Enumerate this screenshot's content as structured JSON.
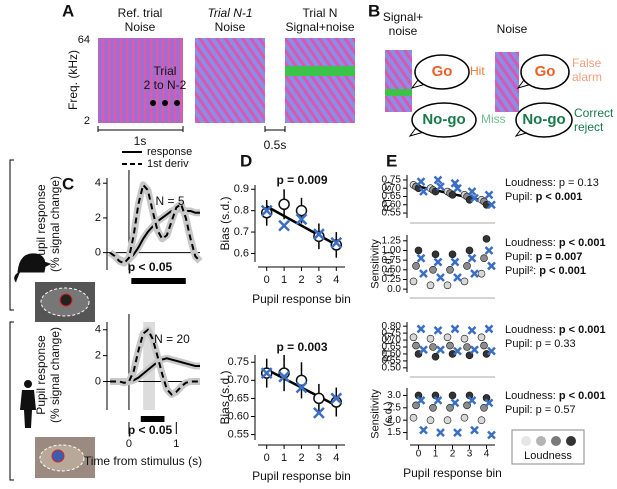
{
  "diagram": {
    "A": {
      "label": "A",
      "ref_title": [
        "Ref. trial",
        "Noise"
      ],
      "freq_label": "Freq. (kHz)",
      "freq_ticks": [
        64,
        2
      ],
      "middle": [
        "Trial",
        "2 to N-2"
      ],
      "prev_title": [
        "Trial N-1",
        "Noise"
      ],
      "current_title": [
        "Trial N",
        "Signal+noise"
      ],
      "scale_ref": "1s",
      "scale_gap": "0.5s"
    },
    "B": {
      "label": "B",
      "signal": {
        "title": [
          "Signal+",
          "noise"
        ],
        "go": "Go",
        "nogo": "No-go",
        "go_outcome": "Hit",
        "nogo_outcome": "Miss"
      },
      "noise": {
        "title": "Noise",
        "go": "Go",
        "nogo": "No-go",
        "go_outcome": [
          "False",
          "alarm"
        ],
        "nogo_outcome": [
          "Correct",
          "reject"
        ]
      }
    }
  },
  "chart_data": [
    {
      "type": "line",
      "label": "C",
      "ylabel": "Pupil response (% signal change)",
      "x": [
        -0.4,
        -0.3,
        -0.2,
        -0.1,
        0,
        0.1,
        0.2,
        0.3,
        0.4,
        0.5,
        0.6,
        0.7,
        0.8,
        0.9,
        1.0,
        1.1,
        1.2,
        1.3,
        1.4,
        1.5
      ],
      "xlim": [
        -0.4,
        1.5
      ],
      "ylim": [
        -1,
        4.3
      ],
      "yticks": [
        0,
        2,
        4
      ],
      "series": [
        {
          "name": "response",
          "color": "#000000",
          "style": "solid",
          "values": [
            0,
            -0.2,
            -0.4,
            -0.5,
            -0.4,
            -0.1,
            0.3,
            0.8,
            1.2,
            1.5,
            1.8,
            2.0,
            2.2,
            2.4,
            2.5,
            2.5,
            2.4,
            2.4,
            2.3,
            2.3
          ]
        },
        {
          "name": "1st deriv",
          "color": "#000000",
          "style": "dashed",
          "values": [
            0,
            -0.2,
            -0.5,
            -0.6,
            -0.3,
            1.0,
            2.8,
            3.9,
            3.6,
            2.4,
            1.3,
            0.8,
            1.0,
            1.8,
            2.6,
            2.8,
            2.0,
            0.8,
            -0.2,
            -0.5
          ]
        }
      ],
      "annotations": [
        "N = 5",
        "p < 0.05"
      ],
      "sig_bar": [
        0.05,
        1.2
      ]
    },
    {
      "type": "line",
      "ylabel": "Pupil response (% signal change)",
      "xlabel": "Time from stimulus (s)",
      "x": [
        -0.4,
        -0.3,
        -0.2,
        -0.1,
        0,
        0.1,
        0.2,
        0.3,
        0.4,
        0.5,
        0.6,
        0.7,
        0.8,
        0.9,
        1.0,
        1.1,
        1.2,
        1.3,
        1.4,
        1.5
      ],
      "xlim": [
        -0.4,
        1.5
      ],
      "xticks": [
        0,
        1
      ],
      "ylim": [
        -2.2,
        4.6
      ],
      "yticks": [
        0,
        2,
        4
      ],
      "series": [
        {
          "color": "#000000",
          "style": "solid",
          "values": [
            0,
            0,
            0,
            0,
            0,
            0.1,
            0.3,
            0.6,
            0.9,
            1.2,
            1.5,
            1.7,
            1.8,
            1.7,
            1.6,
            1.5,
            1.4,
            1.3,
            1.2,
            1.2
          ]
        },
        {
          "color": "#000000",
          "style": "dashed",
          "values": [
            0,
            0,
            0,
            -0.1,
            0,
            0.8,
            2.4,
            3.7,
            4.0,
            3.3,
            2.0,
            0.6,
            -0.6,
            -1.0,
            -0.8,
            -0.4,
            -0.1,
            0,
            0,
            0
          ]
        }
      ],
      "annotations": [
        "N = 20",
        "p < 0.05"
      ],
      "sig_bar": [
        0.25,
        0.75
      ],
      "shade": [
        0.3,
        0.55
      ]
    },
    {
      "type": "scatter",
      "label": "D",
      "ylabel": "Bias (s.d.)",
      "xlabel": "Pupil response bin",
      "x": [
        0,
        1,
        2,
        3,
        4
      ],
      "xlim": [
        -0.5,
        4.5
      ],
      "xticks": [
        0,
        1,
        2,
        3,
        4
      ],
      "ylim": [
        0.56,
        0.92
      ],
      "yticks": [
        0.6,
        0.7,
        0.8,
        0.9
      ],
      "series": [
        {
          "color": "#ffffff",
          "marker": "circle",
          "values": [
            0.79,
            0.83,
            0.8,
            0.68,
            0.64
          ],
          "errors": [
            0.06,
            0.07,
            0.06,
            0.06,
            0.06
          ]
        },
        {
          "color": "#3a6fc4",
          "marker": "x",
          "values": [
            0.8,
            0.73,
            0.76,
            0.69,
            0.65
          ]
        }
      ],
      "fit": [
        0.82,
        0.64
      ],
      "annotations": [
        "p = 0.009"
      ]
    },
    {
      "type": "scatter",
      "ylabel": "Bias (s.d.)",
      "xlabel": "Pupil response bin",
      "x": [
        0,
        1,
        2,
        3,
        4
      ],
      "xlim": [
        -0.5,
        4.5
      ],
      "xticks": [
        0,
        1,
        2,
        3,
        4
      ],
      "ylim": [
        0.535,
        0.77
      ],
      "yticks": [
        0.55,
        {
          "value": 0.6,
          "label": "0.60"
        },
        0.65,
        {
          "value": 0.7,
          "label": "0.70"
        },
        0.75
      ],
      "series": [
        {
          "color": "#ffffff",
          "marker": "circle",
          "values": [
            0.72,
            0.72,
            0.7,
            0.65,
            0.64
          ],
          "errors": [
            0.04,
            0.05,
            0.05,
            0.04,
            0.04
          ]
        },
        {
          "color": "#3a6fc4",
          "marker": "x",
          "values": [
            0.72,
            0.71,
            0.68,
            0.61,
            0.65
          ]
        }
      ],
      "fit": [
        0.73,
        0.63
      ],
      "annotations": [
        "p = 0.003"
      ]
    },
    {
      "type": "scatter",
      "label": "E",
      "ylabel": "RT (s)",
      "x": [
        0,
        1,
        2,
        3,
        4
      ],
      "xlim": [
        -0.5,
        4.5
      ],
      "ylim": [
        0.52,
        0.78
      ],
      "yticks": [
        0.55,
        {
          "value": 0.6,
          "label": "0.60"
        },
        0.65,
        {
          "value": 0.7,
          "label": "0.70"
        },
        0.75
      ],
      "series": [
        {
          "color": "#d8d8d8",
          "marker": "circle",
          "values": [
            0.72,
            0.7,
            0.68,
            0.66,
            0.63
          ]
        },
        {
          "color": "#8c8c8c",
          "marker": "circle",
          "values": [
            0.71,
            0.69,
            0.67,
            0.65,
            0.62
          ]
        },
        {
          "color": "#333333",
          "marker": "circle",
          "values": [
            0.7,
            0.68,
            0.66,
            0.63,
            0.6
          ]
        },
        {
          "color": "#3a6fc4",
          "marker": "x",
          "values": [
            0.74,
            0.75,
            0.73,
            0.68,
            0.66
          ]
        },
        {
          "color": "#3a6fc4",
          "marker": "x",
          "values": [
            0.68,
            0.71,
            0.7,
            0.64,
            0.6
          ]
        }
      ],
      "fit": [
        0.71,
        0.62
      ],
      "stats": [
        {
          "label": "Loudness:",
          "stat": "p = 0.13",
          "bold": false
        },
        {
          "label": "Pupil:",
          "stat": "p < 0.001",
          "bold": true
        }
      ]
    },
    {
      "type": "scatter",
      "ylabel": [
        "Sensitivity",
        "(s.d.)"
      ],
      "x": [
        0,
        1,
        2,
        3,
        4
      ],
      "xlim": [
        -0.5,
        4.5
      ],
      "ylim": [
        -0.1,
        1.4
      ],
      "yticks": [
        {
          "value": 0,
          "label": "0.0"
        },
        0.25,
        {
          "value": 0.5,
          "label": "0.50"
        },
        0.75,
        {
          "value": 1,
          "label": "1.00"
        },
        1.25
      ],
      "series": [
        {
          "color": "#d8d8d8",
          "marker": "circle",
          "values": [
            0.2,
            0.1,
            0.1,
            0.2,
            0.4
          ]
        },
        {
          "color": "#8c8c8c",
          "marker": "circle",
          "values": [
            0.6,
            0.5,
            0.5,
            0.6,
            0.8
          ]
        },
        {
          "color": "#333333",
          "marker": "circle",
          "values": [
            1.0,
            0.9,
            0.9,
            1.0,
            1.3
          ]
        },
        {
          "color": "#3a6fc4",
          "marker": "x",
          "values": [
            0.8,
            0.7,
            0.7,
            0.8,
            1.0
          ]
        },
        {
          "color": "#3a6fc4",
          "marker": "x",
          "values": [
            0.4,
            0.3,
            0.3,
            0.4,
            0.6
          ]
        }
      ],
      "stats": [
        {
          "label": "Loudness:",
          "stat": "p < 0.001",
          "bold": true
        },
        {
          "label": "Pupil:",
          "stat": "p = 0.007",
          "bold": true
        },
        {
          "label": "Pupil²:",
          "stat": "p < 0.001",
          "bold": true
        }
      ]
    },
    {
      "type": "scatter",
      "ylabel": "RT (s)",
      "x": [
        0,
        1,
        2,
        3,
        4
      ],
      "xlim": [
        -0.5,
        4.5
      ],
      "ylim": [
        0.47,
        0.83
      ],
      "yticks": [
        {
          "value": 0.5,
          "label": "0.50"
        },
        0.55,
        {
          "value": 0.6,
          "label": "0.60"
        },
        0.65,
        {
          "value": 0.7,
          "label": "0.70"
        },
        0.75,
        {
          "value": 0.8,
          "label": "0.80"
        }
      ],
      "series": [
        {
          "color": "#d8d8d8",
          "marker": "circle",
          "values": [
            0.72,
            0.71,
            0.72,
            0.71,
            0.72
          ]
        },
        {
          "color": "#8c8c8c",
          "marker": "circle",
          "values": [
            0.66,
            0.65,
            0.66,
            0.65,
            0.66
          ]
        },
        {
          "color": "#333333",
          "marker": "circle",
          "values": [
            0.6,
            0.58,
            0.6,
            0.59,
            0.6
          ]
        },
        {
          "color": "#3a6fc4",
          "marker": "x",
          "values": [
            0.78,
            0.77,
            0.78,
            0.77,
            0.78
          ]
        },
        {
          "color": "#3a6fc4",
          "marker": "x",
          "values": [
            0.63,
            0.63,
            0.62,
            0.63,
            0.62
          ]
        }
      ],
      "stats": [
        {
          "label": "Loudness:",
          "stat": "p < 0.001",
          "bold": true
        },
        {
          "label": "Pupil:",
          "stat": "p = 0.33",
          "bold": false
        }
      ]
    },
    {
      "type": "scatter",
      "ylabel": [
        "Sensitivity",
        "(s.d.)"
      ],
      "xlabel": "Pupil response bin",
      "x": [
        0,
        1,
        2,
        3,
        4
      ],
      "xlim": [
        -0.5,
        4.5
      ],
      "xticks": [
        0,
        1,
        2,
        3,
        4
      ],
      "ylim": [
        1.2,
        3.3
      ],
      "yticks": [
        1.5,
        {
          "value": 2,
          "label": "2.0"
        },
        2.5,
        {
          "value": 3,
          "label": "3.0"
        }
      ],
      "series": [
        {
          "color": "#d8d8d8",
          "marker": "circle",
          "values": [
            2.1,
            2.0,
            2.0,
            2.1,
            2.0
          ]
        },
        {
          "color": "#8c8c8c",
          "marker": "circle",
          "values": [
            2.6,
            2.5,
            2.5,
            2.6,
            2.5
          ]
        },
        {
          "color": "#333333",
          "marker": "circle",
          "values": [
            3.0,
            3.0,
            3.0,
            3.0,
            2.9
          ]
        },
        {
          "color": "#3a6fc4",
          "marker": "x",
          "values": [
            2.8,
            2.8,
            2.7,
            2.8,
            2.7
          ]
        },
        {
          "color": "#3a6fc4",
          "marker": "x",
          "values": [
            1.6,
            1.5,
            1.5,
            1.6,
            1.4
          ]
        }
      ],
      "stats": [
        {
          "label": "Loudness:",
          "stat": "p < 0.001",
          "bold": true
        },
        {
          "label": "Pupil:",
          "stat": "p = 0.57",
          "bold": false
        }
      ],
      "legend": {
        "label": "Loudness",
        "colors": [
          "#e6e6e6",
          "#b4b4b4",
          "#7a7a7a",
          "#333333"
        ]
      }
    }
  ]
}
